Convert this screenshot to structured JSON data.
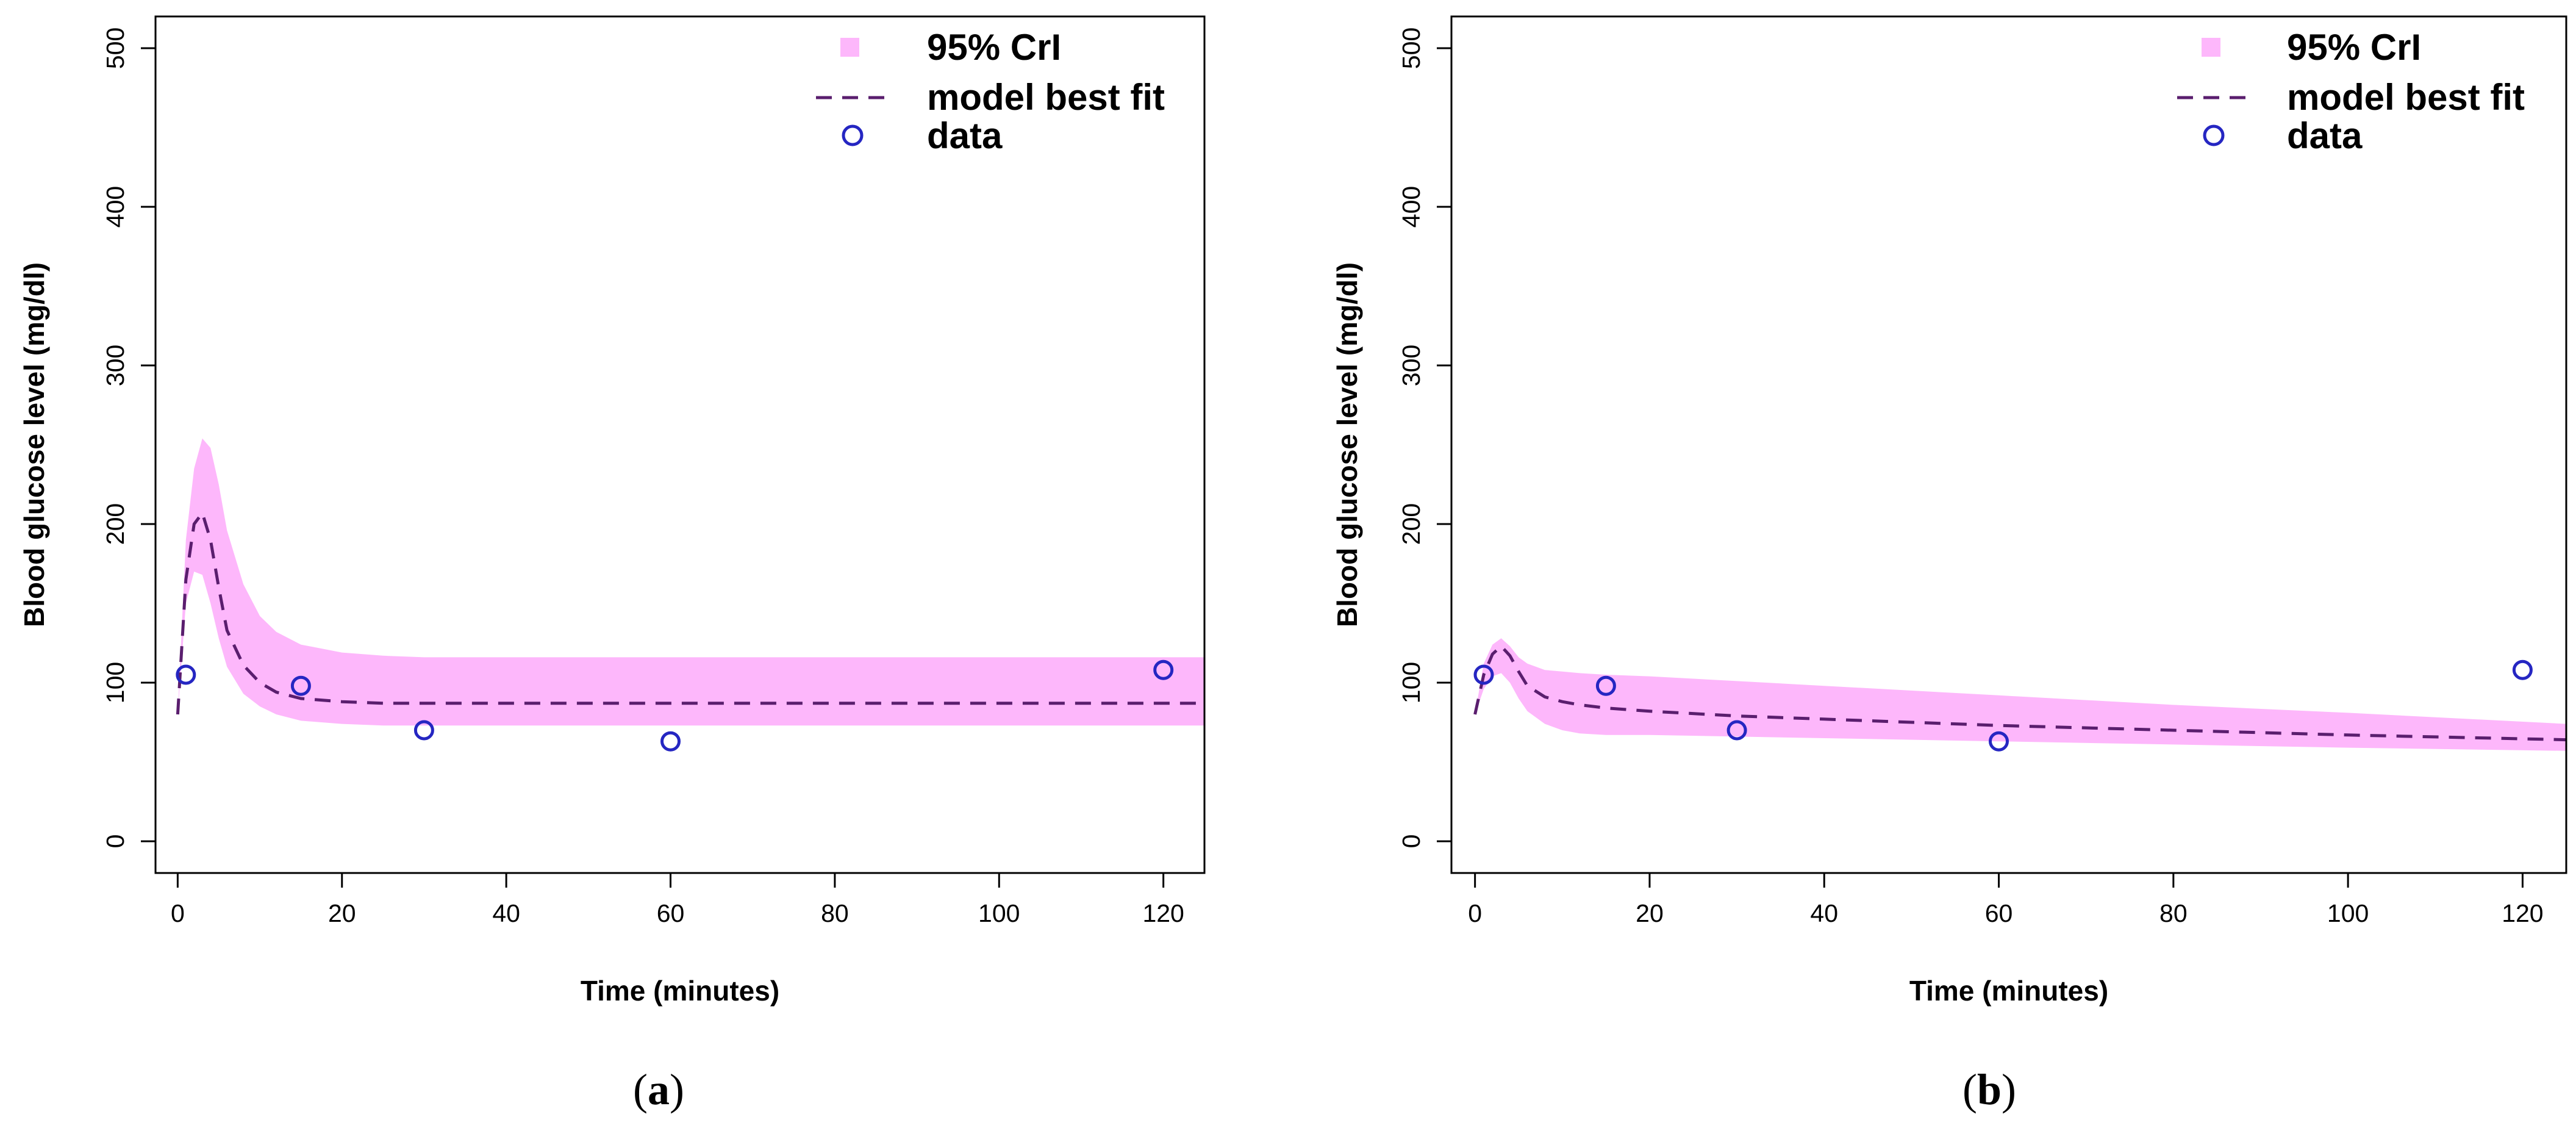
{
  "chart_data": [
    {
      "type": "line",
      "caption_letter": "a",
      "xlabel": "Time (minutes)",
      "ylabel": "Blood glucose level (mg/dl)",
      "xlim": [
        -2.7,
        125
      ],
      "ylim": [
        -20,
        520
      ],
      "xticks": [
        0,
        20,
        40,
        60,
        80,
        100,
        120
      ],
      "yticks": [
        0,
        100,
        200,
        300,
        400,
        500
      ],
      "legend_position": "top-right",
      "legend": {
        "band": "95% CrI",
        "line": "model best fit",
        "points": "data"
      },
      "colors": {
        "band": "#FDB7FB",
        "line": "#5A1E6E",
        "points": "#2526C2"
      },
      "series": [
        {
          "name": "model best fit",
          "x": [
            0,
            1,
            2,
            3,
            4,
            5,
            6,
            8,
            10,
            12,
            15,
            20,
            25,
            30,
            40,
            60,
            80,
            100,
            125
          ],
          "values": [
            80,
            165,
            200,
            207,
            190,
            160,
            133,
            111,
            100,
            94,
            90,
            88,
            87,
            87,
            87,
            87,
            87,
            87,
            87
          ]
        },
        {
          "name": "95% CrI",
          "x": [
            0,
            1,
            2,
            3,
            4,
            5,
            6,
            8,
            10,
            12,
            15,
            20,
            25,
            30,
            40,
            60,
            80,
            100,
            125
          ],
          "lower": [
            80,
            150,
            170,
            168,
            150,
            128,
            110,
            93,
            85,
            80,
            76,
            74,
            73,
            73,
            73,
            73,
            73,
            73,
            73
          ],
          "upper": [
            80,
            190,
            235,
            254,
            248,
            225,
            196,
            162,
            142,
            132,
            124,
            119,
            117,
            116,
            116,
            116,
            116,
            116,
            116
          ]
        },
        {
          "name": "data",
          "x": [
            1,
            15,
            30,
            60,
            120
          ],
          "values": [
            105,
            98,
            70,
            63,
            108
          ]
        }
      ]
    },
    {
      "type": "line",
      "caption_letter": "b",
      "xlabel": "Time (minutes)",
      "ylabel": "Blood glucose level (mg/dl)",
      "xlim": [
        -2.7,
        125
      ],
      "ylim": [
        -20,
        520
      ],
      "xticks": [
        0,
        20,
        40,
        60,
        80,
        100,
        120
      ],
      "yticks": [
        0,
        100,
        200,
        300,
        400,
        500
      ],
      "legend_position": "top-right",
      "legend": {
        "band": "95% CrI",
        "line": "model best fit",
        "points": "data"
      },
      "colors": {
        "band": "#FDB7FB",
        "line": "#5A1E6E",
        "points": "#2526C2"
      },
      "series": [
        {
          "name": "model best fit",
          "x": [
            0,
            1,
            2,
            3,
            4,
            5,
            6,
            8,
            10,
            12,
            15,
            20,
            30,
            40,
            60,
            80,
            100,
            125
          ],
          "values": [
            80,
            105,
            118,
            123,
            117,
            107,
            98,
            91,
            88,
            86,
            84,
            82,
            79,
            77,
            73,
            70,
            67,
            64
          ]
        },
        {
          "name": "95% CrI",
          "x": [
            0,
            1,
            2,
            3,
            4,
            5,
            6,
            8,
            10,
            12,
            15,
            20,
            30,
            40,
            60,
            80,
            100,
            125
          ],
          "lower": [
            80,
            96,
            104,
            106,
            100,
            90,
            82,
            74,
            70,
            68,
            67,
            67,
            66,
            65,
            63,
            61,
            59,
            57
          ],
          "upper": [
            80,
            112,
            124,
            128,
            123,
            116,
            112,
            108,
            107,
            106,
            105,
            104,
            101,
            98,
            92,
            86,
            81,
            74
          ]
        },
        {
          "name": "data",
          "x": [
            1,
            15,
            30,
            60,
            120
          ],
          "values": [
            105,
            98,
            70,
            63,
            108
          ]
        }
      ]
    }
  ]
}
